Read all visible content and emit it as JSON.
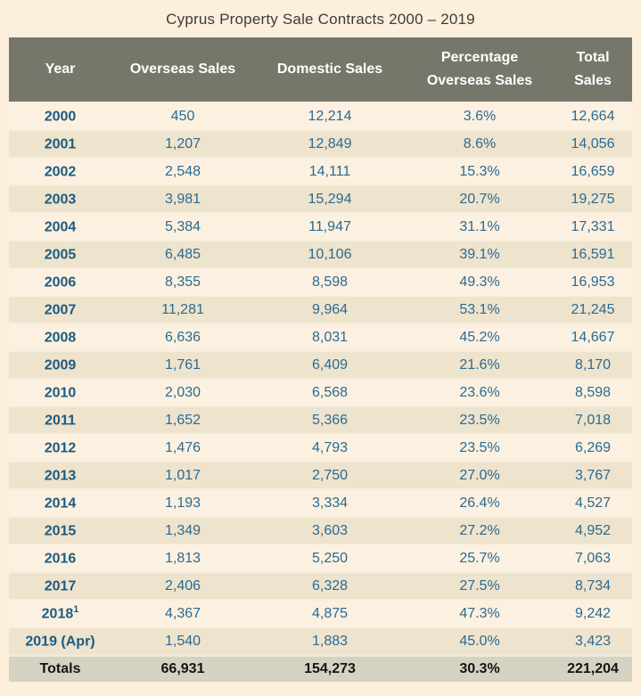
{
  "title": "Cyprus Property Sale Contracts 2000 – 2019",
  "colors": {
    "page_background": "#fcefdc",
    "header_background": "#76766b",
    "header_text": "#ffffff",
    "row_light": "#fcf1e0",
    "row_dark": "#eee3cd",
    "year_text": "#1c5b81",
    "value_text": "#2b6a92",
    "totals_background": "#d6d2c2",
    "totals_text": "#141414"
  },
  "chart_data": {
    "type": "table",
    "title": "Cyprus Property Sale Contracts 2000 – 2019",
    "columns": [
      "Year",
      "Overseas Sales",
      "Domestic Sales",
      "Percentage\nOverseas Sales",
      "Total\nSales"
    ],
    "rows": [
      {
        "year": "2000",
        "sup": "",
        "overseas": "450",
        "domestic": "12,214",
        "pct": "3.6%",
        "total": "12,664"
      },
      {
        "year": "2001",
        "sup": "",
        "overseas": "1,207",
        "domestic": "12,849",
        "pct": "8.6%",
        "total": "14,056"
      },
      {
        "year": "2002",
        "sup": "",
        "overseas": "2,548",
        "domestic": "14,111",
        "pct": "15.3%",
        "total": "16,659"
      },
      {
        "year": "2003",
        "sup": "",
        "overseas": "3,981",
        "domestic": "15,294",
        "pct": "20.7%",
        "total": "19,275"
      },
      {
        "year": "2004",
        "sup": "",
        "overseas": "5,384",
        "domestic": "11,947",
        "pct": "31.1%",
        "total": "17,331"
      },
      {
        "year": "2005",
        "sup": "",
        "overseas": "6,485",
        "domestic": "10,106",
        "pct": "39.1%",
        "total": "16,591"
      },
      {
        "year": "2006",
        "sup": "",
        "overseas": "8,355",
        "domestic": "8,598",
        "pct": "49.3%",
        "total": "16,953"
      },
      {
        "year": "2007",
        "sup": "",
        "overseas": "11,281",
        "domestic": "9,964",
        "pct": "53.1%",
        "total": "21,245"
      },
      {
        "year": "2008",
        "sup": "",
        "overseas": "6,636",
        "domestic": "8,031",
        "pct": "45.2%",
        "total": "14,667"
      },
      {
        "year": "2009",
        "sup": "",
        "overseas": "1,761",
        "domestic": "6,409",
        "pct": "21.6%",
        "total": "8,170"
      },
      {
        "year": "2010",
        "sup": "",
        "overseas": "2,030",
        "domestic": "6,568",
        "pct": "23.6%",
        "total": "8,598"
      },
      {
        "year": "2011",
        "sup": "",
        "overseas": "1,652",
        "domestic": "5,366",
        "pct": "23.5%",
        "total": "7,018"
      },
      {
        "year": "2012",
        "sup": "",
        "overseas": "1,476",
        "domestic": "4,793",
        "pct": "23.5%",
        "total": "6,269"
      },
      {
        "year": "2013",
        "sup": "",
        "overseas": "1,017",
        "domestic": "2,750",
        "pct": "27.0%",
        "total": "3,767"
      },
      {
        "year": "2014",
        "sup": "",
        "overseas": "1,193",
        "domestic": "3,334",
        "pct": "26.4%",
        "total": "4,527"
      },
      {
        "year": "2015",
        "sup": "",
        "overseas": "1,349",
        "domestic": "3,603",
        "pct": "27.2%",
        "total": "4,952"
      },
      {
        "year": "2016",
        "sup": "",
        "overseas": "1,813",
        "domestic": "5,250",
        "pct": "25.7%",
        "total": "7,063"
      },
      {
        "year": "2017",
        "sup": "",
        "overseas": "2,406",
        "domestic": "6,328",
        "pct": "27.5%",
        "total": "8,734"
      },
      {
        "year": "2018",
        "sup": "1",
        "overseas": "4,367",
        "domestic": "4,875",
        "pct": "47.3%",
        "total": "9,242"
      },
      {
        "year": "2019 (Apr)",
        "sup": "",
        "overseas": "1,540",
        "domestic": "1,883",
        "pct": "45.0%",
        "total": "3,423"
      }
    ],
    "totals": {
      "label": "Totals",
      "overseas": "66,931",
      "domestic": "154,273",
      "pct": "30.3%",
      "total": "221,204"
    }
  }
}
